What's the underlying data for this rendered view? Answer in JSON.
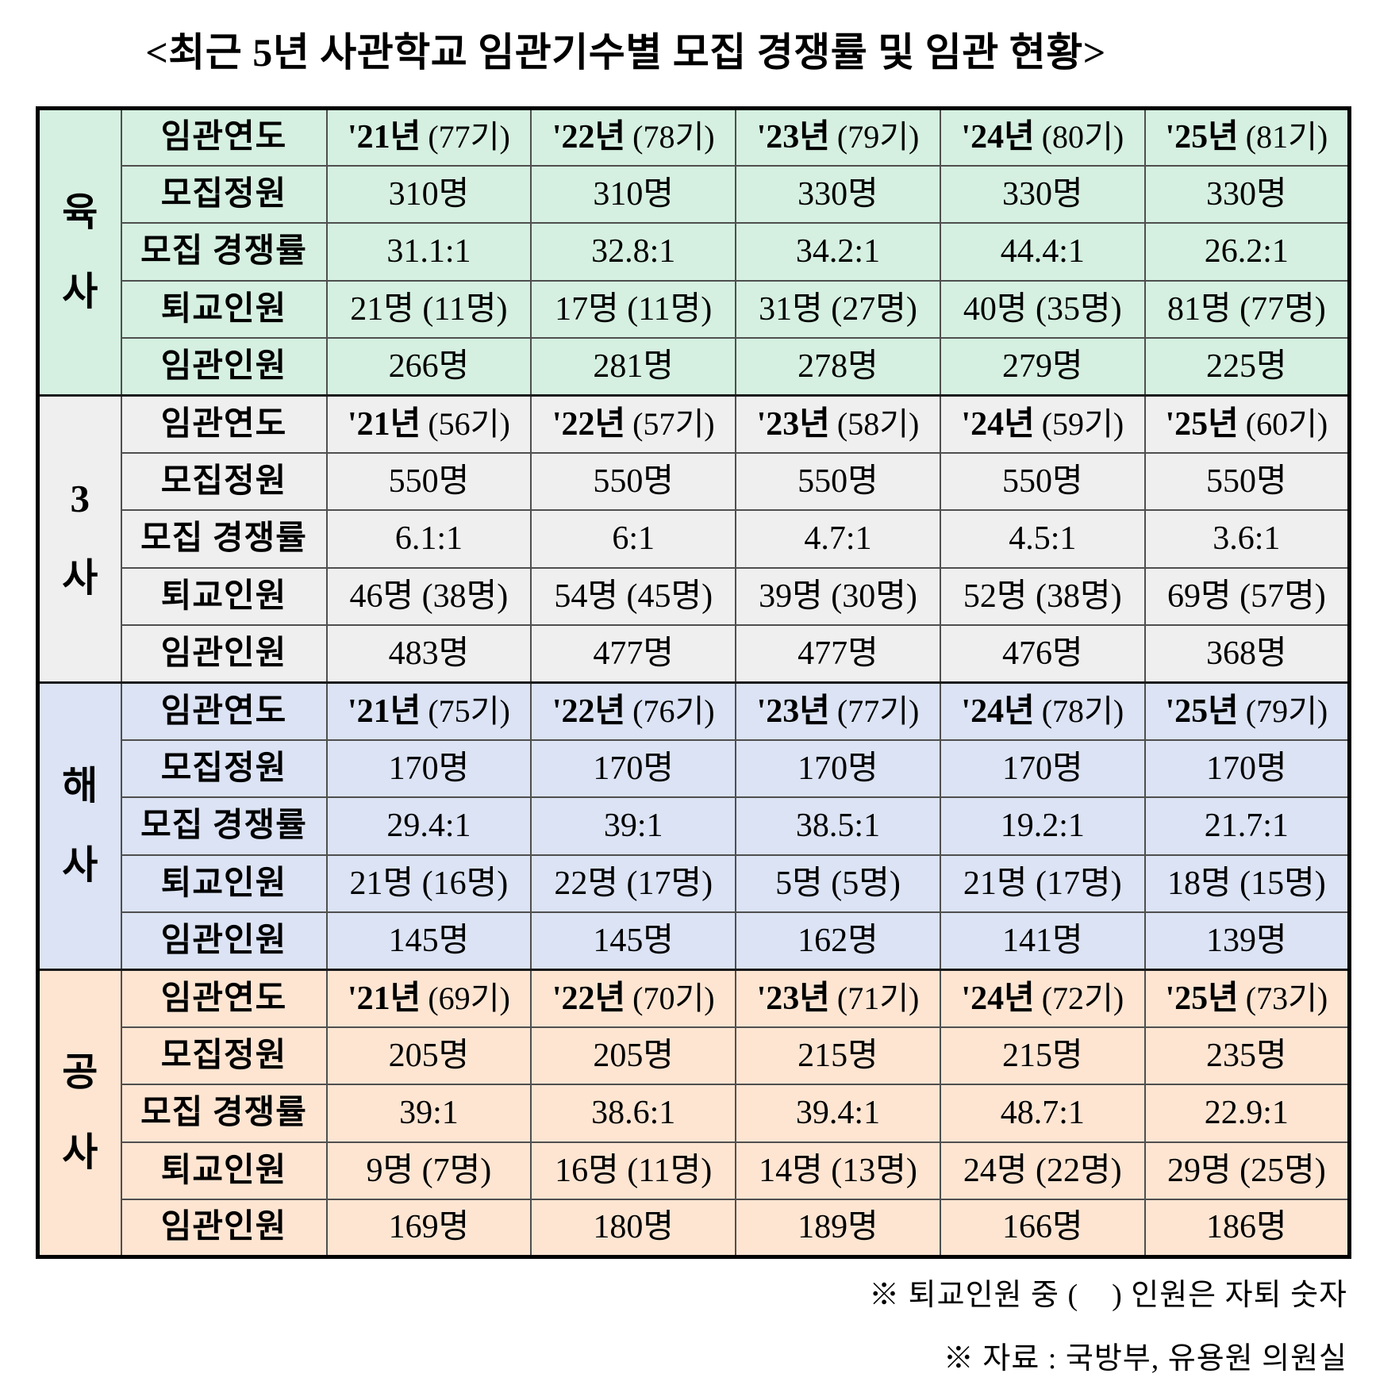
{
  "title": "<최근 5년 사관학교 임관기수별 모집 경쟁률 및 임관 현황>",
  "table": {
    "row_labels": [
      "임관연도",
      "모집정원",
      "모집 경쟁률",
      "퇴교인원",
      "임관인원"
    ],
    "sections": [
      {
        "name": "육사",
        "bg": "#d5f0e1",
        "years": [
          {
            "year": "'21년",
            "cohort": "(77기)"
          },
          {
            "year": "'22년",
            "cohort": "(78기)"
          },
          {
            "year": "'23년",
            "cohort": "(79기)"
          },
          {
            "year": "'24년",
            "cohort": "(80기)"
          },
          {
            "year": "'25년",
            "cohort": "(81기)"
          }
        ],
        "quota": [
          "310명",
          "310명",
          "330명",
          "330명",
          "330명"
        ],
        "ratio": [
          "31.1:1",
          "32.8:1",
          "34.2:1",
          "44.4:1",
          "26.2:1"
        ],
        "dropout": [
          "21명 (11명)",
          "17명 (11명)",
          "31명 (27명)",
          "40명 (35명)",
          "81명 (77명)"
        ],
        "commissioned": [
          "266명",
          "281명",
          "278명",
          "279명",
          "225명"
        ]
      },
      {
        "name": "3사",
        "bg": "#efefef",
        "years": [
          {
            "year": "'21년",
            "cohort": "(56기)"
          },
          {
            "year": "'22년",
            "cohort": "(57기)"
          },
          {
            "year": "'23년",
            "cohort": "(58기)"
          },
          {
            "year": "'24년",
            "cohort": "(59기)"
          },
          {
            "year": "'25년",
            "cohort": "(60기)"
          }
        ],
        "quota": [
          "550명",
          "550명",
          "550명",
          "550명",
          "550명"
        ],
        "ratio": [
          "6.1:1",
          "6:1",
          "4.7:1",
          "4.5:1",
          "3.6:1"
        ],
        "dropout": [
          "46명 (38명)",
          "54명 (45명)",
          "39명 (30명)",
          "52명 (38명)",
          "69명 (57명)"
        ],
        "commissioned": [
          "483명",
          "477명",
          "477명",
          "476명",
          "368명"
        ]
      },
      {
        "name": "해사",
        "bg": "#dbe3f4",
        "years": [
          {
            "year": "'21년",
            "cohort": "(75기)"
          },
          {
            "year": "'22년",
            "cohort": "(76기)"
          },
          {
            "year": "'23년",
            "cohort": "(77기)"
          },
          {
            "year": "'24년",
            "cohort": "(78기)"
          },
          {
            "year": "'25년",
            "cohort": "(79기)"
          }
        ],
        "quota": [
          "170명",
          "170명",
          "170명",
          "170명",
          "170명"
        ],
        "ratio": [
          "29.4:1",
          "39:1",
          "38.5:1",
          "19.2:1",
          "21.7:1"
        ],
        "dropout": [
          "21명 (16명)",
          "22명 (17명)",
          "5명 (5명)",
          "21명 (17명)",
          "18명 (15명)"
        ],
        "commissioned": [
          "145명",
          "145명",
          "162명",
          "141명",
          "139명"
        ]
      },
      {
        "name": "공사",
        "bg": "#fde5d2",
        "years": [
          {
            "year": "'21년",
            "cohort": "(69기)"
          },
          {
            "year": "'22년",
            "cohort": "(70기)"
          },
          {
            "year": "'23년",
            "cohort": "(71기)"
          },
          {
            "year": "'24년",
            "cohort": "(72기)"
          },
          {
            "year": "'25년",
            "cohort": "(73기)"
          }
        ],
        "quota": [
          "205명",
          "205명",
          "215명",
          "215명",
          "235명"
        ],
        "ratio": [
          "39:1",
          "38.6:1",
          "39.4:1",
          "48.7:1",
          "22.9:1"
        ],
        "dropout": [
          "9명 (7명)",
          "16명 (11명)",
          "14명 (13명)",
          "24명 (22명)",
          "29명 (25명)"
        ],
        "commissioned": [
          "169명",
          "180명",
          "189명",
          "166명",
          "186명"
        ]
      }
    ]
  },
  "footnotes": [
    "※ 퇴교인원 중 (    ) 인원은 자퇴 숫자",
    "※ 자료 : 국방부, 유용원 의원실"
  ]
}
